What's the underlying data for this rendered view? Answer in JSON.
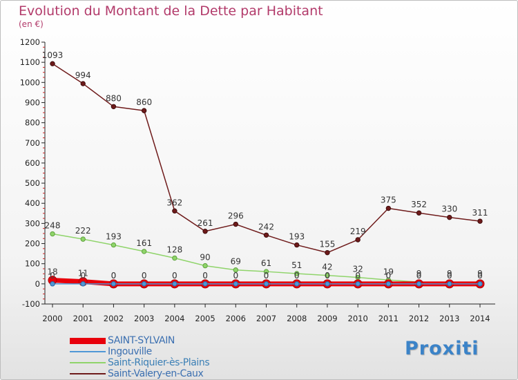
{
  "header": {
    "title": "Evolution du Montant de la Dette par Habitant",
    "subtitle": "(en €)"
  },
  "logo": "Proxiti",
  "chart_data": {
    "type": "line",
    "title": "Evolution du Montant de la Dette par Habitant",
    "subtitle": "(en €)",
    "xlabel": "",
    "ylabel": "",
    "x": [
      "2000",
      "2001",
      "2002",
      "2003",
      "2004",
      "2005",
      "2006",
      "2007",
      "2008",
      "2009",
      "2010",
      "2011",
      "2012",
      "2013",
      "2014"
    ],
    "ylim": [
      -100,
      1200
    ],
    "yticks": [
      -100,
      0,
      100,
      200,
      300,
      400,
      500,
      600,
      700,
      800,
      900,
      1000,
      1100,
      1200
    ],
    "grid": false,
    "legend": "bottom-left",
    "series": [
      {
        "name": "SAINT-SYLVAIN",
        "color": "#e8000b",
        "values": [
          18,
          11,
          0,
          0,
          0,
          0,
          0,
          0,
          0,
          0,
          0,
          0,
          0,
          0,
          0
        ],
        "labels": [
          "18",
          "11",
          "0",
          "0",
          "0",
          "0",
          "0",
          "0",
          "0",
          "0",
          "0",
          "0",
          "0",
          "0",
          "0"
        ]
      },
      {
        "name": "Ingouville",
        "color": "#4f97d6",
        "values": [
          0,
          0,
          0,
          0,
          0,
          0,
          0,
          0,
          0,
          0,
          0,
          0,
          0,
          0,
          0
        ],
        "labels": [
          "0",
          "0",
          "0",
          "0",
          "0",
          "0",
          "0",
          "0",
          "0",
          "0",
          "0",
          "0",
          "0",
          "0",
          "0"
        ]
      },
      {
        "name": "Saint-Riquier-ès-Plains",
        "color": "#8fd46a",
        "values": [
          248,
          222,
          193,
          161,
          128,
          90,
          69,
          61,
          51,
          42,
          32,
          19,
          9,
          9,
          9
        ],
        "labels": [
          "248",
          "222",
          "193",
          "161",
          "128",
          "90",
          "69",
          "61",
          "51",
          "42",
          "32",
          "19",
          "9",
          "9",
          "9"
        ]
      },
      {
        "name": "Saint-Valery-en-Caux",
        "color": "#6e1a1a",
        "values": [
          1093,
          994,
          880,
          860,
          362,
          261,
          296,
          242,
          193,
          155,
          219,
          375,
          352,
          330,
          311
        ],
        "labels": [
          "1093",
          "994",
          "880",
          "860",
          "362",
          "261",
          "296",
          "242",
          "193",
          "155",
          "219",
          "375",
          "352",
          "330",
          "311"
        ]
      }
    ]
  }
}
